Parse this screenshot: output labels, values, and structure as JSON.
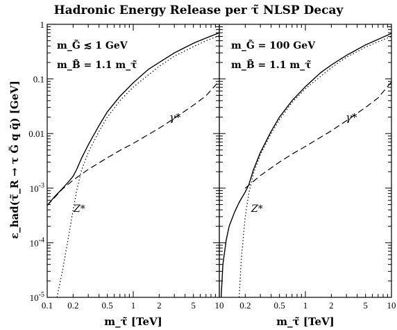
{
  "title": "Hadronic Energy Release per τ̃ NLSP Decay",
  "ylabel": "ε_had(τ̃_R → τ G̃ q q̄)  [GeV]",
  "colors": {
    "line": "#000000",
    "background": "#ffffff"
  },
  "chart_data": [
    {
      "type": "line",
      "panel": "left",
      "xscale": "log",
      "yscale": "log",
      "xlim": [
        0.1,
        10
      ],
      "ylim": [
        1e-05,
        1
      ],
      "xlabel": "m_τ̃ [TeV]",
      "xticks": [
        "0.1",
        "0.2",
        "0.5",
        "1",
        "2",
        "5",
        "10"
      ],
      "yticks": [
        "1",
        "0.1",
        "0.01",
        "10^-3",
        "10^-4",
        "10^-5"
      ],
      "annotation_lines": [
        "m_G̃ ≲ 1 GeV",
        "m_B̃ = 1.1 m_τ̃"
      ],
      "curve_labels": [
        "γ*",
        "Z*"
      ],
      "series": [
        {
          "style": "solid",
          "x": [
            0.1,
            0.12,
            0.15,
            0.18,
            0.2,
            0.22,
            0.25,
            0.3,
            0.4,
            0.5,
            0.7,
            1,
            1.5,
            2,
            3,
            5,
            7,
            10
          ],
          "y": [
            0.00048,
            0.00068,
            0.00098,
            0.00135,
            0.00165,
            0.0022,
            0.0035,
            0.0062,
            0.014,
            0.025,
            0.048,
            0.085,
            0.15,
            0.2,
            0.3,
            0.45,
            0.56,
            0.7
          ]
        },
        {
          "style": "dashed",
          "label": "γ*",
          "x": [
            0.1,
            0.15,
            0.2,
            0.3,
            0.5,
            0.7,
            1,
            2,
            3,
            5,
            7,
            10
          ],
          "y": [
            0.00048,
            0.00096,
            0.0014,
            0.0022,
            0.0036,
            0.0049,
            0.0066,
            0.0125,
            0.019,
            0.033,
            0.049,
            0.092
          ]
        },
        {
          "style": "dotted",
          "label": "Z*",
          "x": [
            0.13,
            0.15,
            0.18,
            0.2,
            0.22,
            0.25,
            0.3,
            0.4,
            0.5,
            0.7,
            1,
            2,
            3,
            5,
            7,
            10
          ],
          "y": [
            1e-05,
            3e-05,
            0.00015,
            0.0004,
            0.0009,
            0.0021,
            0.0045,
            0.011,
            0.02,
            0.04,
            0.071,
            0.17,
            0.26,
            0.39,
            0.5,
            0.62
          ]
        }
      ]
    },
    {
      "type": "line",
      "panel": "right",
      "xscale": "log",
      "yscale": "log",
      "xlim": [
        0.1,
        10
      ],
      "ylim": [
        1e-05,
        1
      ],
      "xlabel": "m_τ̃ [TeV]",
      "xticks": [
        "0.2",
        "0.5",
        "1",
        "2",
        "5",
        "10"
      ],
      "yticks": [],
      "annotation_lines": [
        "m_G̃ = 100 GeV",
        "m_B̃ = 1.1 m_τ̃"
      ],
      "curve_labels": [
        "γ*",
        "Z*"
      ],
      "series": [
        {
          "style": "solid",
          "x": [
            0.105,
            0.11,
            0.12,
            0.13,
            0.15,
            0.17,
            0.2,
            0.22,
            0.25,
            0.3,
            0.4,
            0.5,
            0.7,
            1,
            1.5,
            2,
            3,
            5,
            7,
            10
          ],
          "y": [
            1e-05,
            4e-05,
            0.00011,
            0.0002,
            0.00036,
            0.00055,
            0.00085,
            0.00115,
            0.0022,
            0.0045,
            0.011,
            0.02,
            0.04,
            0.072,
            0.13,
            0.18,
            0.27,
            0.42,
            0.53,
            0.68
          ]
        },
        {
          "style": "dashed",
          "label": "γ*",
          "x": [
            0.2,
            0.3,
            0.5,
            0.7,
            1,
            2,
            3,
            5,
            7,
            10
          ],
          "y": [
            0.001,
            0.0017,
            0.003,
            0.0042,
            0.0058,
            0.0112,
            0.0172,
            0.03,
            0.045,
            0.088
          ]
        },
        {
          "style": "dotted",
          "label": "Z*",
          "x": [
            0.17,
            0.18,
            0.2,
            0.22,
            0.25,
            0.3,
            0.4,
            0.5,
            0.7,
            1,
            2,
            3,
            5,
            7,
            10
          ],
          "y": [
            1e-05,
            5e-05,
            0.0003,
            0.0008,
            0.0019,
            0.0041,
            0.01,
            0.018,
            0.037,
            0.066,
            0.16,
            0.25,
            0.38,
            0.48,
            0.6
          ]
        }
      ]
    }
  ]
}
